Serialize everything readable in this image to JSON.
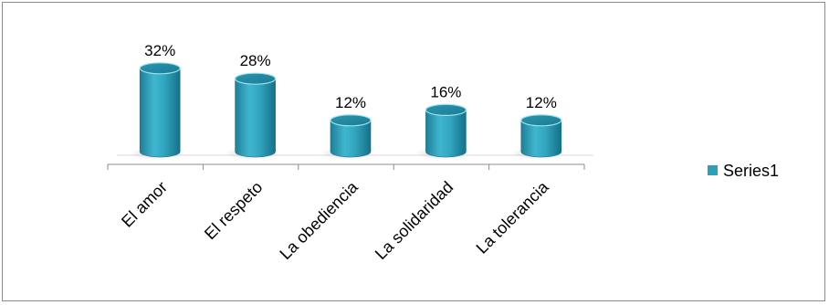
{
  "chart_data": {
    "type": "bar",
    "style": "3d-cylinder",
    "categories": [
      "El amor",
      "El respeto",
      "La obediencia",
      "La solidaridad",
      "La tolerancia"
    ],
    "series": [
      {
        "name": "Series1",
        "values": [
          32,
          28,
          12,
          16,
          12
        ],
        "labels": [
          "32%",
          "28%",
          "12%",
          "16%",
          "12%"
        ],
        "color": "#2e9fb9"
      }
    ],
    "value_unit": "%",
    "title": "",
    "xlabel": "",
    "ylabel": "",
    "ylim": [
      0,
      35
    ],
    "grid": false,
    "legend": "right"
  }
}
